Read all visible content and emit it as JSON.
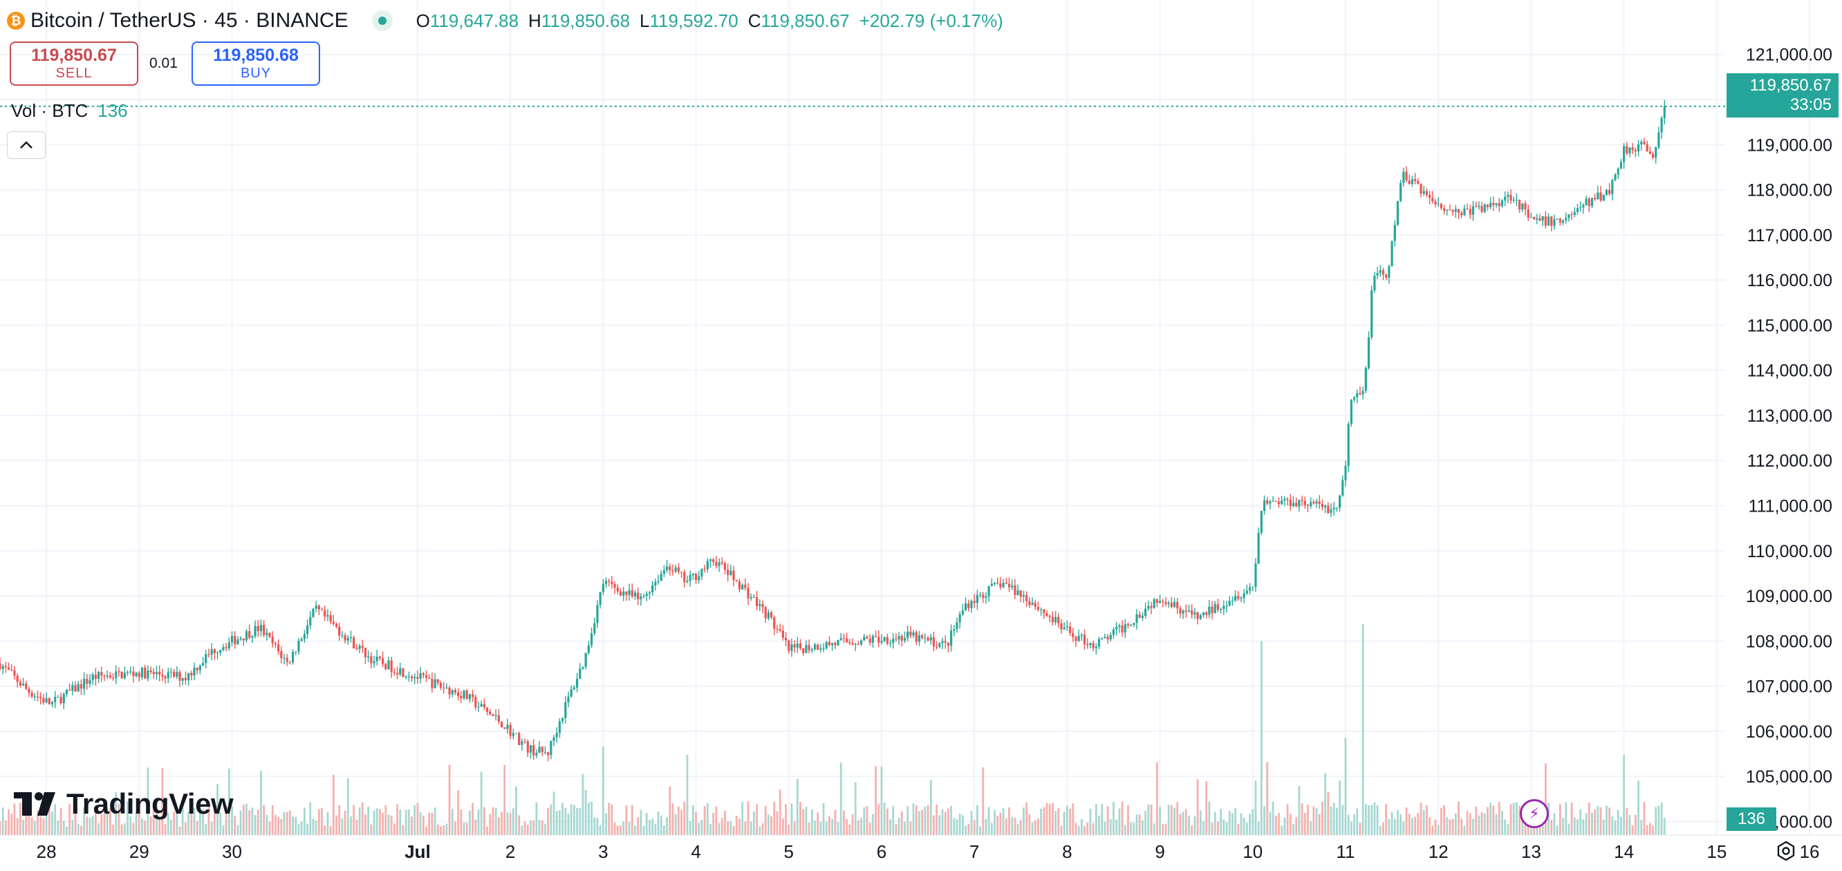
{
  "header": {
    "symbol": "Bitcoin / TetherUS · 45 · BINANCE",
    "open_label": "O",
    "open": "119,647.88",
    "high_label": "H",
    "high": "119,850.68",
    "low_label": "L",
    "low": "119,592.70",
    "close_label": "C",
    "close": "119,850.67",
    "change": "+202.79 (+0.17%)"
  },
  "trade": {
    "sell_price": "119,850.67",
    "sell_label": "SELL",
    "quantity": "0.01",
    "buy_price": "119,850.68",
    "buy_label": "BUY"
  },
  "volume_legend": {
    "label": "Vol · BTC",
    "value": "136"
  },
  "last_price": {
    "price": "119,850.67",
    "countdown": "33:05"
  },
  "volume_badge": "136",
  "branding": {
    "logo_text": "TradingView"
  },
  "icons": {
    "collapse": "chevron-up-icon",
    "logo": "bitcoin-logo-icon",
    "live": "live-status-dot-icon",
    "bolt": "lightning-icon",
    "settings": "gear-icon"
  },
  "colors": {
    "up": "#26a69a",
    "down": "#ef5350",
    "vol_up": "#a6d7d1",
    "vol_down": "#f5b0ad",
    "grid": "#f0f3fa",
    "text": "#131722",
    "sell": "#c94a4f",
    "buy": "#2962ff",
    "bolt": "#9c27b0"
  },
  "chart_data": {
    "type": "candlestick",
    "interval": "45 minutes",
    "y_axis": {
      "ticks": [
        104000,
        105000,
        106000,
        107000,
        108000,
        109000,
        110000,
        111000,
        112000,
        113000,
        114000,
        115000,
        116000,
        117000,
        118000,
        119000,
        120000,
        121000
      ],
      "tick_labels": [
        "104,000.00",
        "105,000.00",
        "106,000.00",
        "107,000.00",
        "108,000.00",
        "109,000.00",
        "110,000.00",
        "111,000.00",
        "112,000.00",
        "113,000.00",
        "114,000.00",
        "115,000.00",
        "116,000.00",
        "117,000.00",
        "118,000.00",
        "119,000.00",
        "120,000.00",
        "121,000.00"
      ],
      "range": [
        103700,
        121900
      ],
      "position": "right"
    },
    "x_axis": {
      "tick_labels": [
        "28",
        "29",
        "30",
        "Jul",
        "2",
        "3",
        "4",
        "5",
        "6",
        "7",
        "8",
        "9",
        "10",
        "11",
        "12",
        "13",
        "14",
        "15",
        "16"
      ],
      "bold_labels": [
        "Jul"
      ],
      "day_range": [
        -3.5,
        16.35
      ]
    },
    "grid": true,
    "last_price_line": 119850.67,
    "price_path": [
      {
        "day": -3.5,
        "price": 107500
      },
      {
        "day": -3.2,
        "price": 106900
      },
      {
        "day": -2.95,
        "price": 106600
      },
      {
        "day": -2.5,
        "price": 107200
      },
      {
        "day": -2.0,
        "price": 107300
      },
      {
        "day": -1.5,
        "price": 107200
      },
      {
        "day": -1.2,
        "price": 107800
      },
      {
        "day": -0.7,
        "price": 108300
      },
      {
        "day": -0.4,
        "price": 107500
      },
      {
        "day": -0.1,
        "price": 108700
      },
      {
        "day": 0.5,
        "price": 107600
      },
      {
        "day": 1.0,
        "price": 107200
      },
      {
        "day": 1.5,
        "price": 106800
      },
      {
        "day": 1.9,
        "price": 106200
      },
      {
        "day": 2.2,
        "price": 105600
      },
      {
        "day": 2.4,
        "price": 105500
      },
      {
        "day": 2.6,
        "price": 106600
      },
      {
        "day": 2.8,
        "price": 107600
      },
      {
        "day": 3.0,
        "price": 109300
      },
      {
        "day": 3.4,
        "price": 108900
      },
      {
        "day": 3.7,
        "price": 109700
      },
      {
        "day": 3.9,
        "price": 109300
      },
      {
        "day": 4.2,
        "price": 109800
      },
      {
        "day": 4.5,
        "price": 109200
      },
      {
        "day": 4.8,
        "price": 108500
      },
      {
        "day": 5.0,
        "price": 107800
      },
      {
        "day": 5.3,
        "price": 107900
      },
      {
        "day": 5.7,
        "price": 108000
      },
      {
        "day": 6.3,
        "price": 108100
      },
      {
        "day": 6.7,
        "price": 107900
      },
      {
        "day": 6.9,
        "price": 108800
      },
      {
        "day": 7.3,
        "price": 109300
      },
      {
        "day": 7.6,
        "price": 108900
      },
      {
        "day": 8.0,
        "price": 108200
      },
      {
        "day": 8.3,
        "price": 107900
      },
      {
        "day": 8.6,
        "price": 108300
      },
      {
        "day": 9.0,
        "price": 109000
      },
      {
        "day": 9.4,
        "price": 108500
      },
      {
        "day": 9.8,
        "price": 109000
      },
      {
        "day": 10.0,
        "price": 109200
      },
      {
        "day": 10.1,
        "price": 111100
      },
      {
        "day": 10.5,
        "price": 111100
      },
      {
        "day": 10.9,
        "price": 110900
      },
      {
        "day": 11.0,
        "price": 111800
      },
      {
        "day": 11.05,
        "price": 113300
      },
      {
        "day": 11.2,
        "price": 113500
      },
      {
        "day": 11.3,
        "price": 116200
      },
      {
        "day": 11.45,
        "price": 116000
      },
      {
        "day": 11.6,
        "price": 118300
      },
      {
        "day": 11.75,
        "price": 118200
      },
      {
        "day": 11.9,
        "price": 117800
      },
      {
        "day": 12.2,
        "price": 117500
      },
      {
        "day": 12.5,
        "price": 117600
      },
      {
        "day": 12.8,
        "price": 117900
      },
      {
        "day": 13.0,
        "price": 117300
      },
      {
        "day": 13.3,
        "price": 117300
      },
      {
        "day": 13.6,
        "price": 117700
      },
      {
        "day": 13.85,
        "price": 118000
      },
      {
        "day": 14.0,
        "price": 118900
      },
      {
        "day": 14.2,
        "price": 119000
      },
      {
        "day": 14.3,
        "price": 118700
      },
      {
        "day": 14.42,
        "price": 119600
      },
      {
        "day": 14.45,
        "price": 119850
      }
    ],
    "volume_spikes": [
      {
        "day": 10.1,
        "volume_fraction": 0.92
      },
      {
        "day": 11.2,
        "volume_fraction": 1.0
      },
      {
        "day": 11.0,
        "volume_fraction": 0.46
      },
      {
        "day": 3.0,
        "volume_fraction": 0.42
      },
      {
        "day": 3.9,
        "volume_fraction": 0.38
      },
      {
        "day": 14.0,
        "volume_fraction": 0.38
      }
    ]
  }
}
